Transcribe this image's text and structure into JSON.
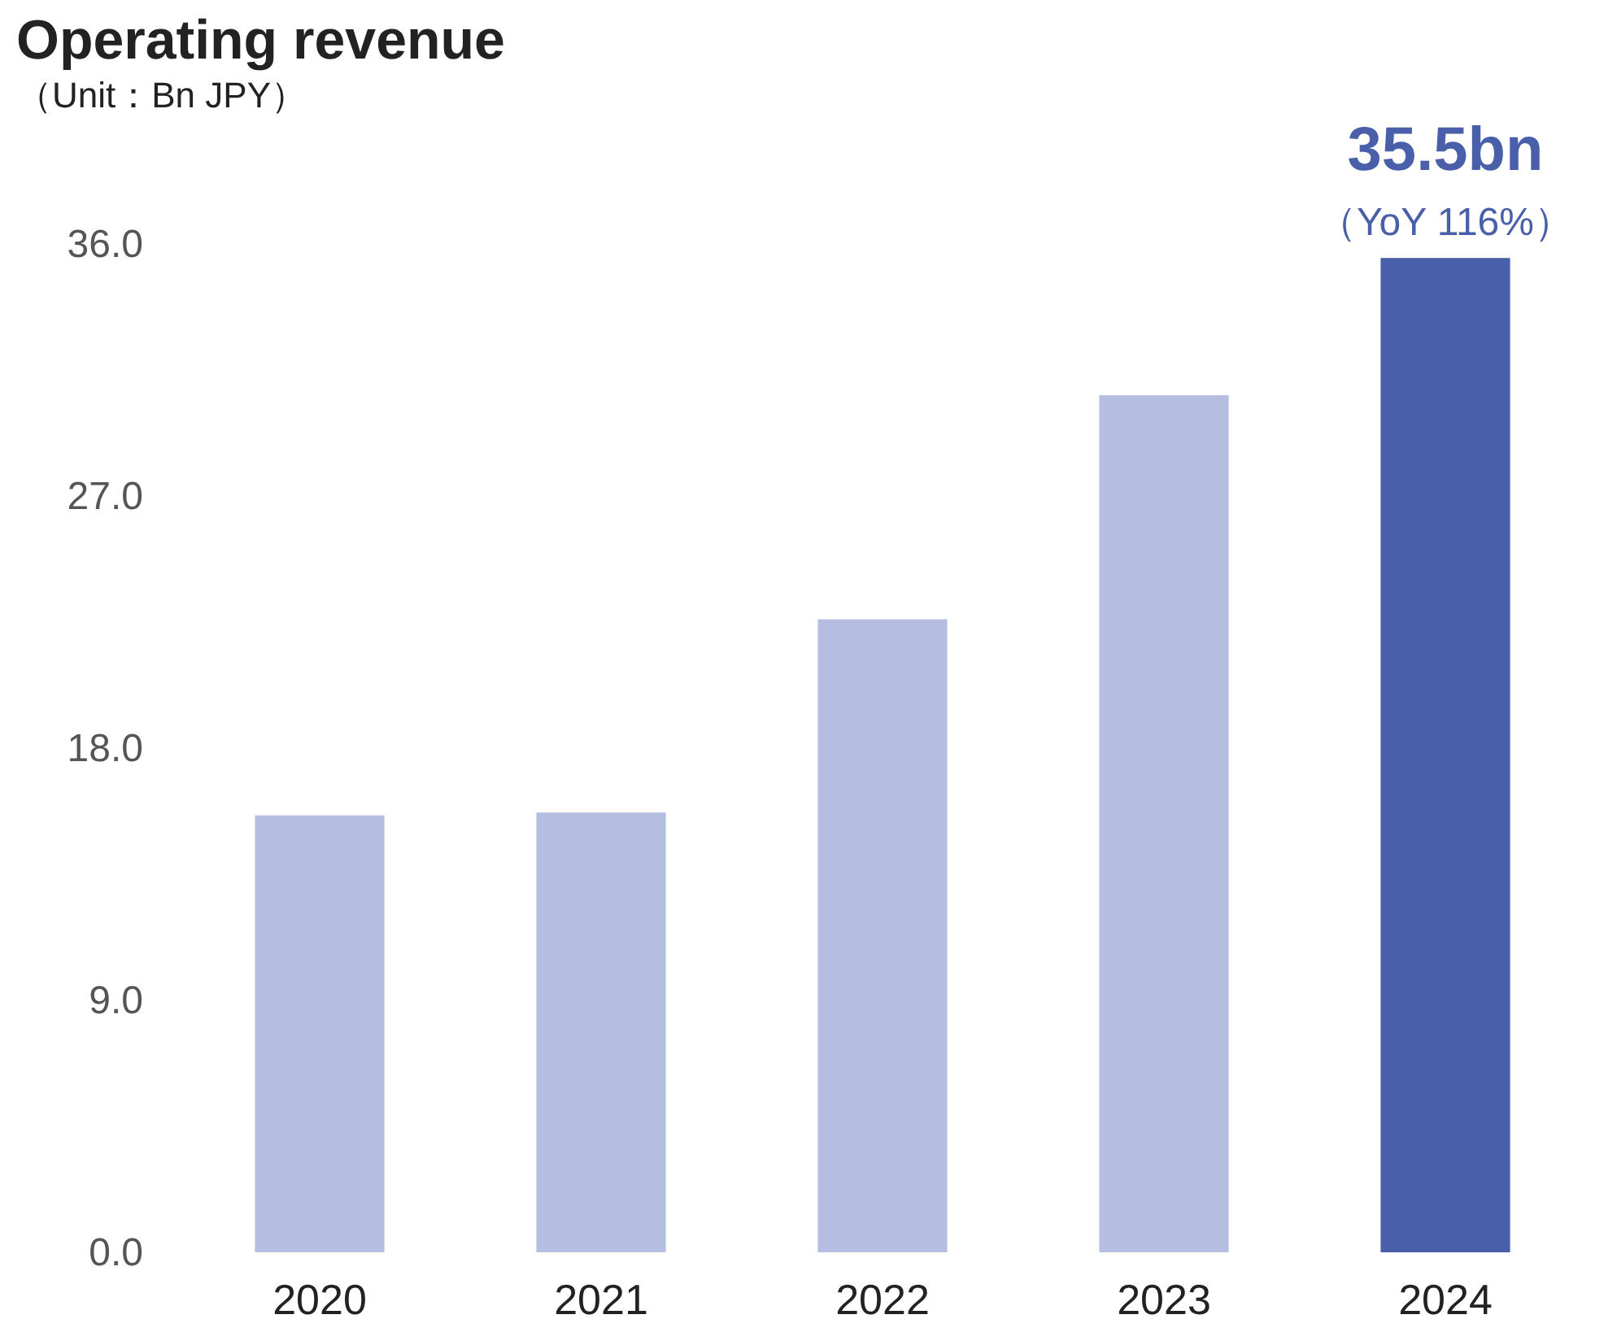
{
  "chart_data": {
    "type": "bar",
    "title": "Operating revenue",
    "subtitle": "（Unit：Bn JPY）",
    "categories": [
      "2020",
      "2021",
      "2022",
      "2023",
      "2024"
    ],
    "values": [
      15.6,
      15.7,
      22.6,
      30.6,
      35.5
    ],
    "colors": [
      "#b5bde0",
      "#b5bde0",
      "#b5bde0",
      "#b5bde0",
      "#4a5faa"
    ],
    "ylim": [
      0,
      36
    ],
    "yticks": [
      {
        "value": 0,
        "label": "0.0"
      },
      {
        "value": 9,
        "label": "9.0"
      },
      {
        "value": 18,
        "label": "18.0"
      },
      {
        "value": 27,
        "label": "27.0"
      },
      {
        "value": 36,
        "label": "36.0"
      }
    ],
    "annotations": [
      {
        "text": "35.5bn",
        "x": "2024",
        "y": 35.5
      },
      {
        "text": "（YoY 116%）",
        "x": "2024",
        "y": 35.5
      }
    ]
  }
}
